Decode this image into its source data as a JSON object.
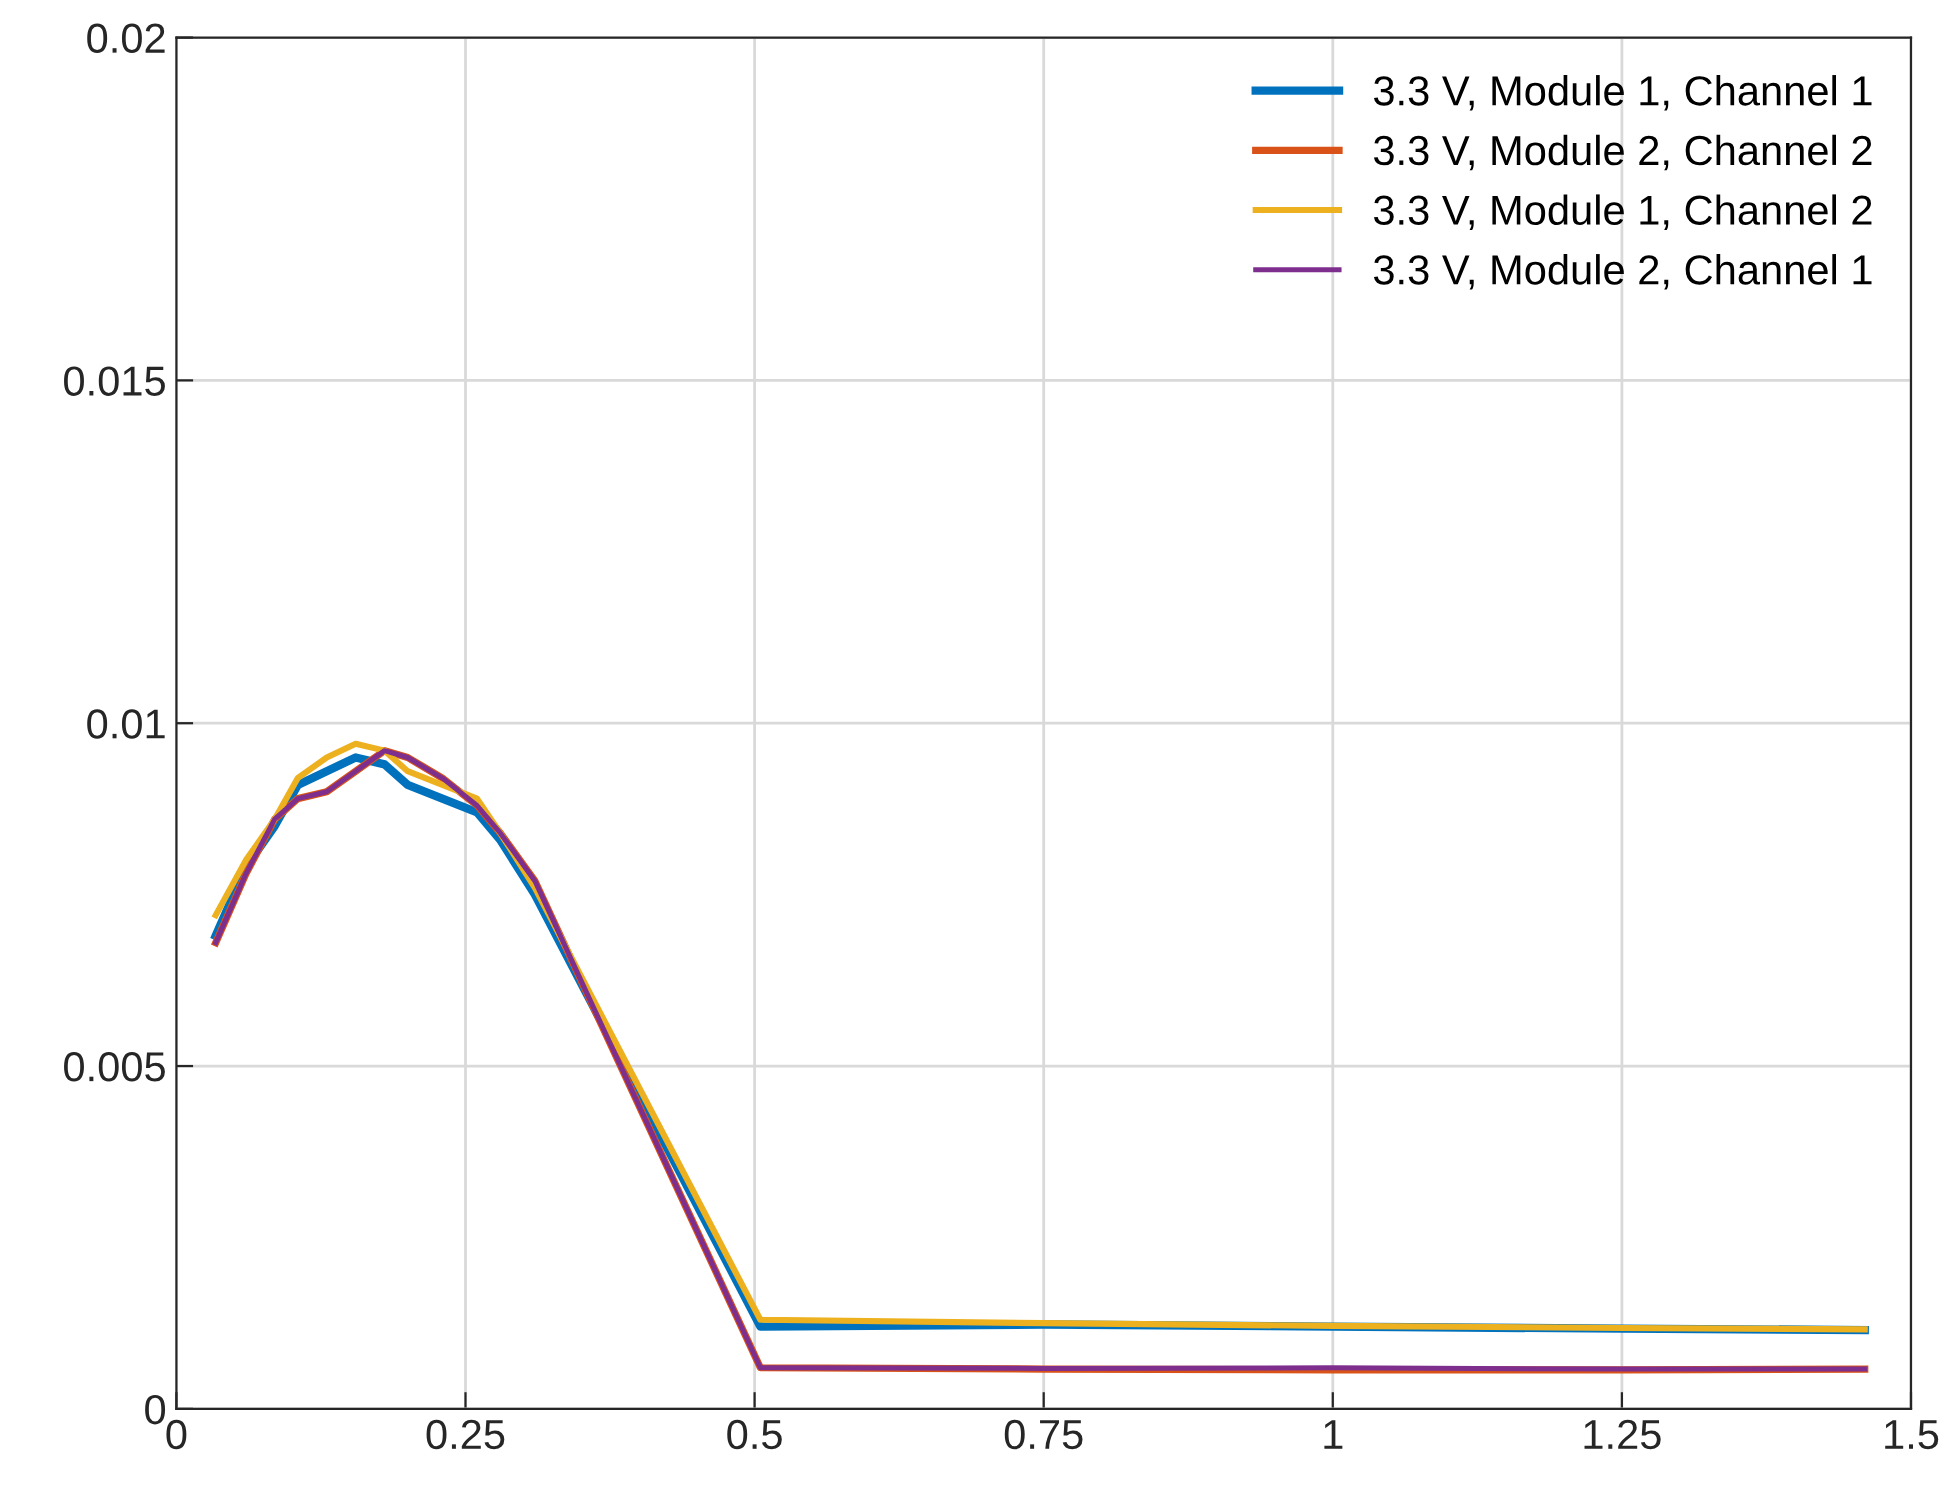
{
  "chart_data": {
    "type": "line",
    "x": [
      0.034,
      0.06,
      0.085,
      0.105,
      0.13,
      0.155,
      0.18,
      0.2,
      0.23,
      0.26,
      0.28,
      0.31,
      0.505,
      0.75,
      1.0,
      1.25,
      1.46
    ],
    "series": [
      {
        "name": "3.3 V, Module 1, Channel 1",
        "color": "#0072bd",
        "values": [
          0.0069,
          0.0079,
          0.0085,
          0.0091,
          0.0093,
          0.0095,
          0.0094,
          0.0091,
          0.0089,
          0.0087,
          0.0083,
          0.0075,
          0.0012,
          0.00123,
          0.0012,
          0.00117,
          0.00115
        ]
      },
      {
        "name": "3.3 V, Module 2, Channel 2",
        "color": "#d95319",
        "values": [
          0.0068,
          0.0078,
          0.0086,
          0.0089,
          0.009,
          0.0093,
          0.0096,
          0.0095,
          0.0092,
          0.0088,
          0.0084,
          0.0077,
          0.0006,
          0.00058,
          0.00057,
          0.00057,
          0.00058
        ]
      },
      {
        "name": "3.3 V, Module 1, Channel 2",
        "color": "#edb120",
        "values": [
          0.0072,
          0.008,
          0.0086,
          0.0092,
          0.0095,
          0.0097,
          0.0096,
          0.0093,
          0.0091,
          0.0089,
          0.0084,
          0.0076,
          0.0013,
          0.00125,
          0.00121,
          0.00118,
          0.00116
        ]
      },
      {
        "name": "3.3 V, Module 2, Channel 1",
        "color": "#7e2f8e",
        "values": [
          0.0068,
          0.0078,
          0.0086,
          0.0089,
          0.009,
          0.0093,
          0.0096,
          0.0095,
          0.0092,
          0.0088,
          0.0084,
          0.0077,
          0.0006,
          0.00059,
          0.0006,
          0.00058,
          0.00058
        ]
      }
    ],
    "xlim": [
      0,
      1.5
    ],
    "xticks": [
      0,
      0.25,
      0.5,
      0.75,
      1,
      1.25,
      1.5
    ],
    "ylim": [
      0,
      0.02
    ],
    "yticks": [
      0,
      0.005,
      0.01,
      0.015,
      0.02
    ],
    "grid": true,
    "legend": "top right",
    "marker": "none",
    "line_style": "solid"
  }
}
